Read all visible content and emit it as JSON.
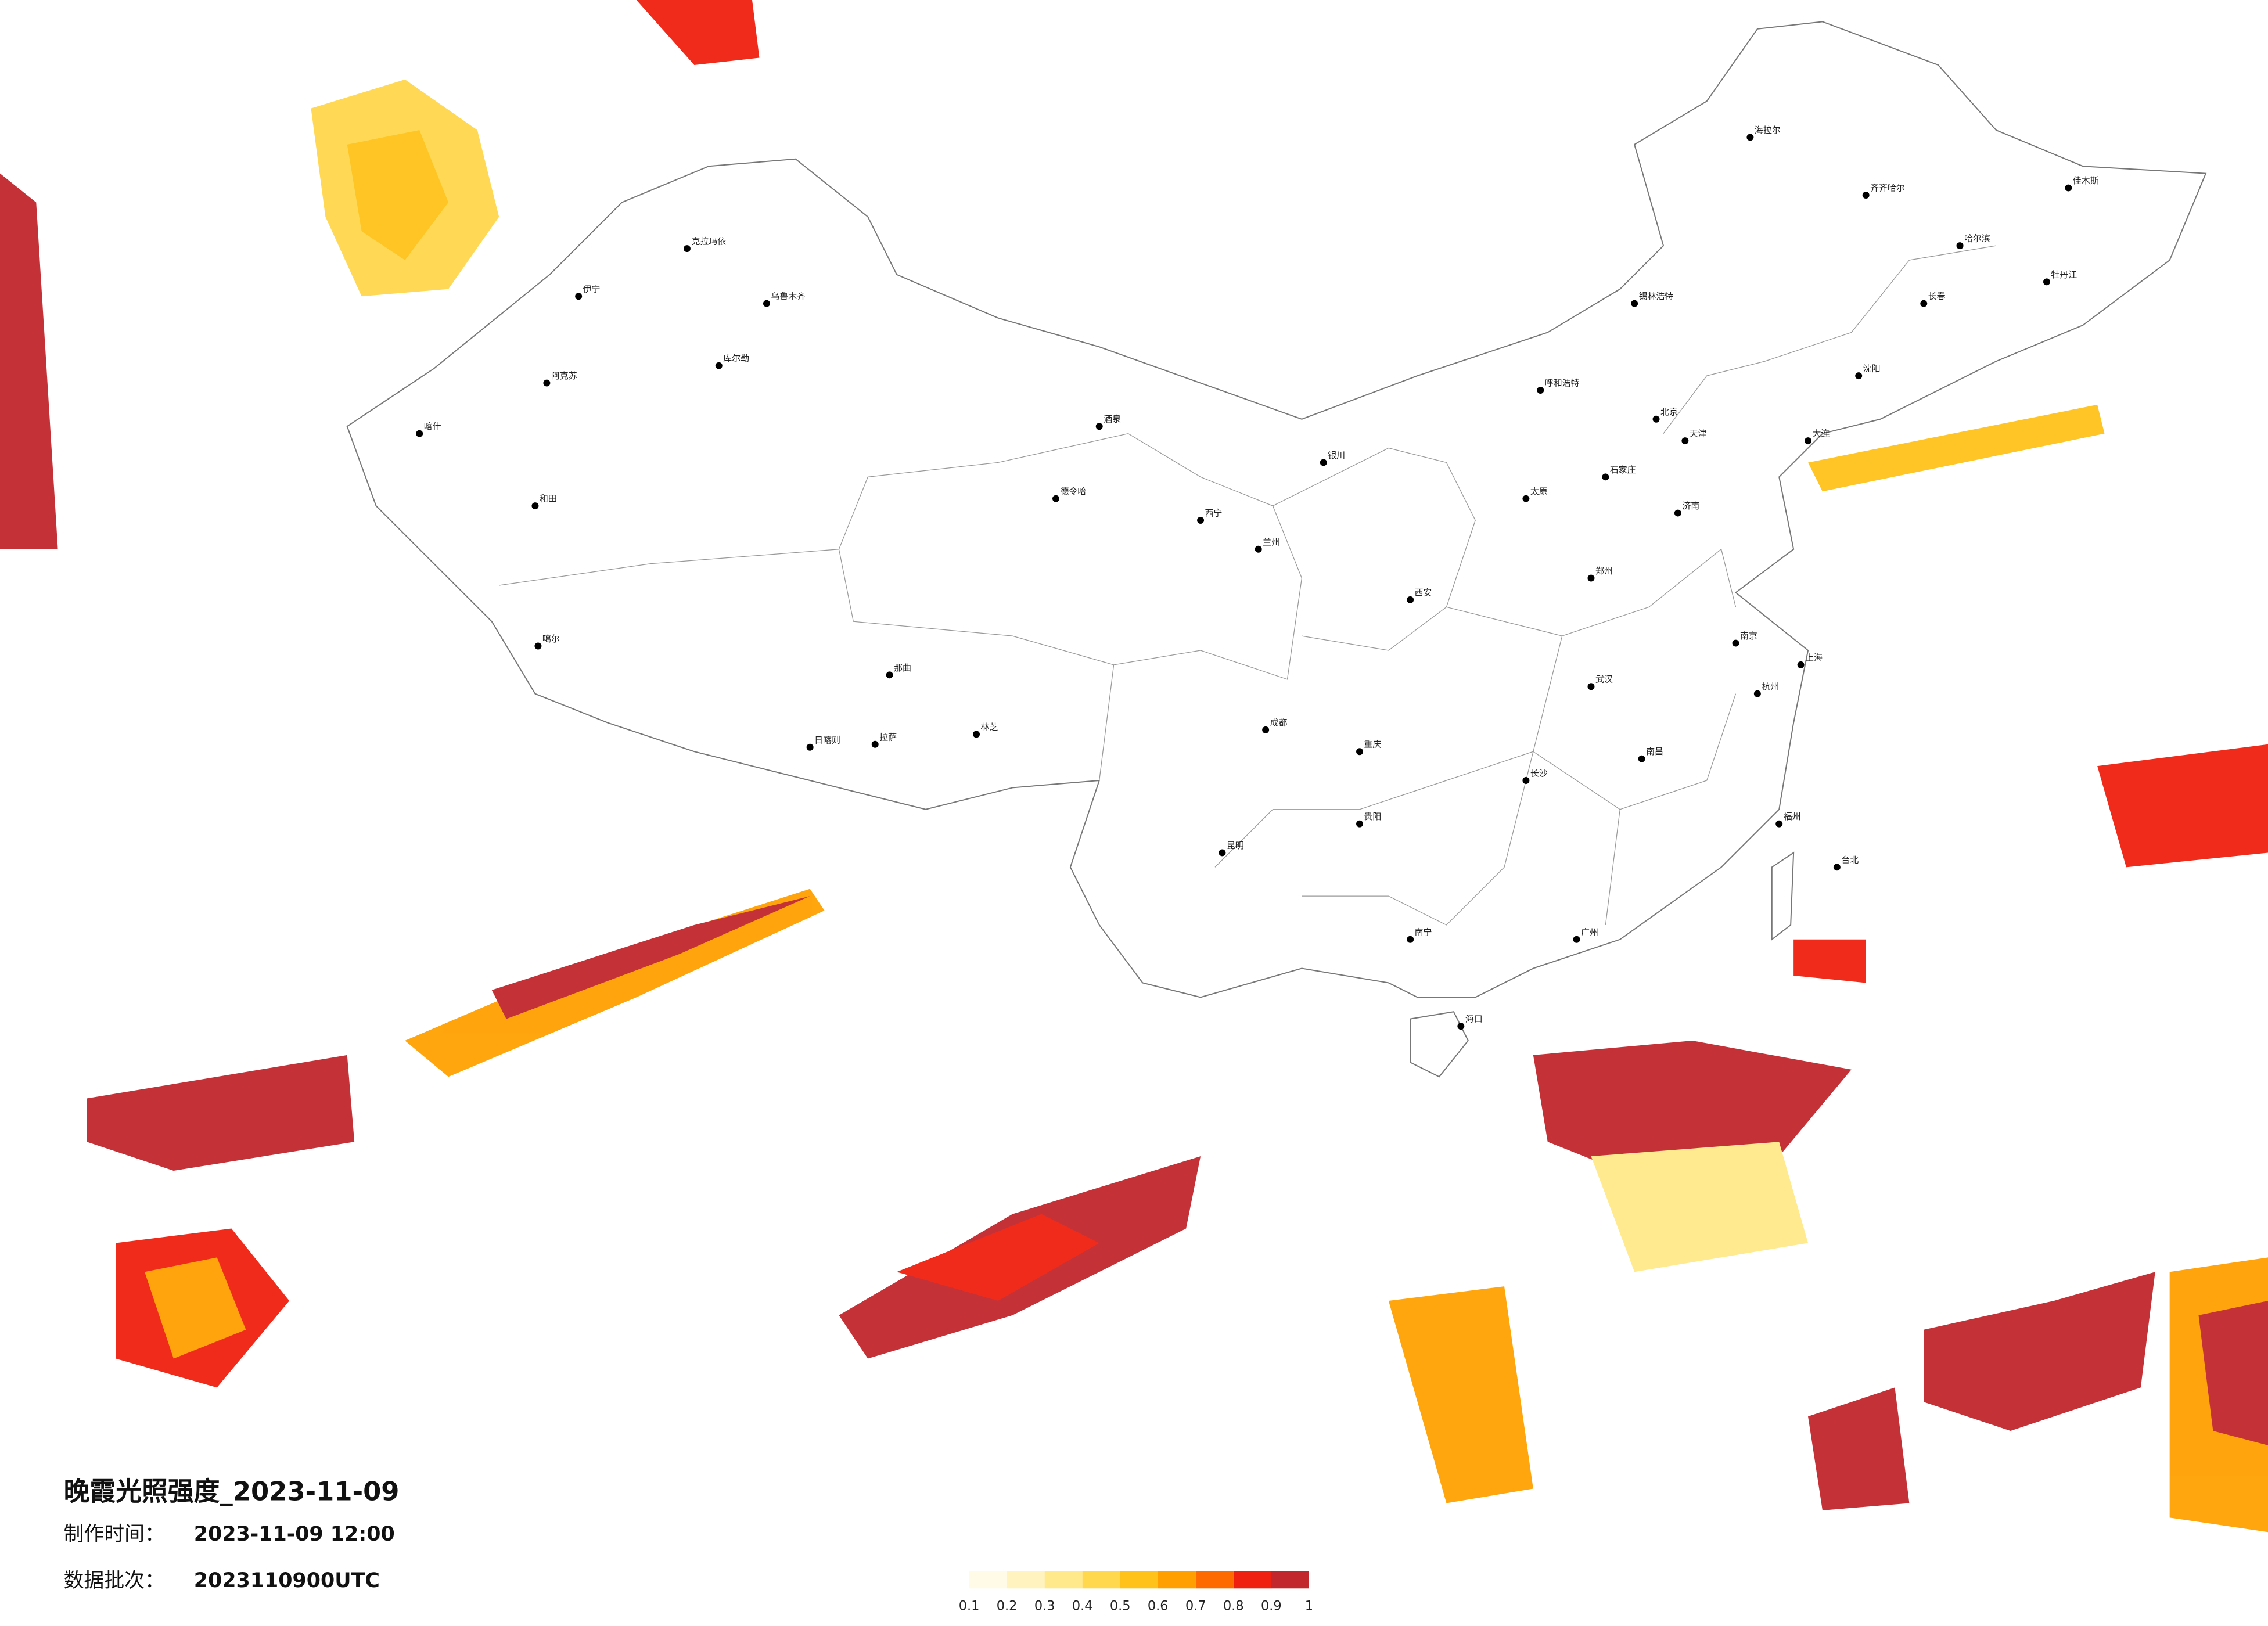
{
  "header": {
    "title": "晚霞光照强度_2023-11-09",
    "made_label": "制作时间：",
    "made_time": "2023-11-09 12:00",
    "batch_label": "数据批次：",
    "batch": "2023110900UTC"
  },
  "legend": {
    "ticks": [
      0.1,
      0.2,
      0.3,
      0.4,
      0.5,
      0.6,
      0.7,
      0.8,
      0.9,
      1
    ],
    "colors": [
      "#fffbe6",
      "#fff4c0",
      "#ffe98a",
      "#ffd84d",
      "#ffc21a",
      "#ffa000",
      "#ff6a00",
      "#f02010",
      "#c1272d"
    ]
  },
  "cities": [
    "克拉玛依",
    "乌鲁木齐",
    "伊宁",
    "阿克苏",
    "库尔勒",
    "喀什",
    "和田",
    "噶尔",
    "日喀则",
    "拉萨",
    "林芝",
    "那曲",
    "德令哈",
    "酒泉",
    "西宁",
    "兰州",
    "银川",
    "呼和浩特",
    "北京",
    "天津",
    "石家庄",
    "太原",
    "西安",
    "郑州",
    "济南",
    "成都",
    "重庆",
    "武汉",
    "南京",
    "上海",
    "杭州",
    "长沙",
    "南昌",
    "福州",
    "广州",
    "南宁",
    "昆明",
    "贵阳",
    "海口",
    "台北",
    "哈尔滨",
    "长春",
    "沈阳",
    "大连",
    "海拉尔",
    "齐齐哈尔",
    "锡林浩特",
    "牡丹江",
    "佳木斯"
  ]
}
